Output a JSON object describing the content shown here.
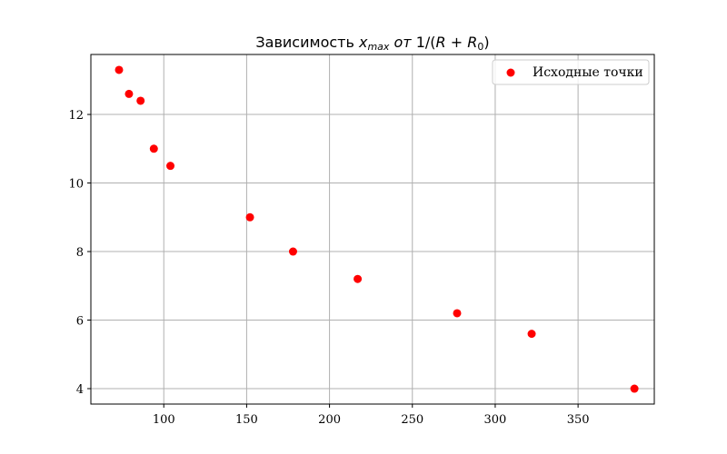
{
  "chart_data": {
    "type": "scatter",
    "title": "Зависимость x_max от 1/(R + R_0)",
    "xlabel": "",
    "ylabel": "",
    "xlim": [
      56,
      396
    ],
    "ylim": [
      3.55,
      13.75
    ],
    "x_ticks": [
      100,
      150,
      200,
      250,
      300,
      350
    ],
    "y_ticks": [
      4,
      6,
      8,
      10,
      12
    ],
    "grid": true,
    "legend_position": "top-right",
    "series": [
      {
        "name": "Исходные точки",
        "color": "#ff0000",
        "points": [
          {
            "x": 73,
            "y": 13.3
          },
          {
            "x": 79,
            "y": 12.6
          },
          {
            "x": 86,
            "y": 12.4
          },
          {
            "x": 94,
            "y": 11.0
          },
          {
            "x": 104,
            "y": 10.5
          },
          {
            "x": 152,
            "y": 9.0
          },
          {
            "x": 178,
            "y": 8.0
          },
          {
            "x": 217,
            "y": 7.2
          },
          {
            "x": 277,
            "y": 6.2
          },
          {
            "x": 322,
            "y": 5.6
          },
          {
            "x": 384,
            "y": 4.0
          }
        ]
      }
    ]
  }
}
